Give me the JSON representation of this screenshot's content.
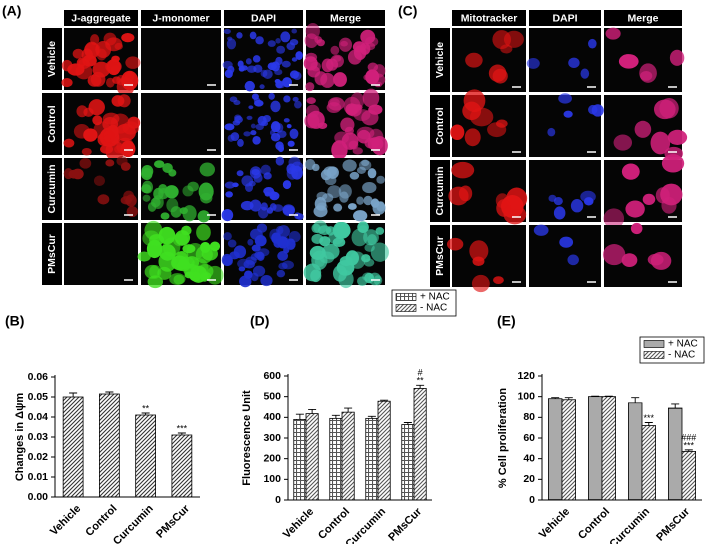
{
  "panels": {
    "A": {
      "label": "(A)",
      "columns": [
        "J-aggregate",
        "J-monomer",
        "DAPI",
        "Merge"
      ],
      "rows": [
        "Vehicle",
        "Control",
        "Curcumin",
        "PMsCur"
      ]
    },
    "C": {
      "label": "(C)",
      "columns": [
        "Mitotracker",
        "DAPI",
        "Merge"
      ],
      "rows": [
        "Vehicle",
        "Control",
        "Curcumin",
        "PMsCur"
      ]
    }
  },
  "chart_data": [
    {
      "type": "bar",
      "panel_label": "(B)",
      "ylabel": "Changes in Δψm",
      "categories": [
        "Vehicle",
        "Control",
        "Curcumin",
        "PMsCur"
      ],
      "values": [
        0.05,
        0.0515,
        0.041,
        0.031
      ],
      "errors": [
        0.002,
        0.001,
        0.001,
        0.001
      ],
      "annotations": [
        [],
        [],
        [
          "**"
        ],
        [
          "***"
        ]
      ],
      "color": "#333333",
      "hatch": "diagonal",
      "ylim": [
        0,
        0.06
      ],
      "yticks": [
        {
          "value": 0,
          "label": "0.00"
        },
        {
          "value": 0.01,
          "label": "0.01"
        },
        {
          "value": 0.02,
          "label": "0.02"
        },
        {
          "value": 0.03,
          "label": "0.03"
        },
        {
          "value": 0.04,
          "label": "0.04"
        },
        {
          "value": 0.05,
          "label": "0.05"
        },
        {
          "value": 0.06,
          "label": "0.06"
        }
      ]
    },
    {
      "type": "bar",
      "panel_label": "(D)",
      "ylabel": "Fluorescence Unit",
      "legend": "upper right",
      "categories": [
        "Vehicle",
        "Control",
        "Curcumin",
        "PMsCur"
      ],
      "series": [
        {
          "name": "+ NAC",
          "color": "#555555",
          "hatch": "grid",
          "values": [
            390,
            395,
            395,
            365
          ],
          "errors": [
            25,
            15,
            10,
            10
          ],
          "annotations": [
            [],
            [],
            [],
            []
          ]
        },
        {
          "name": "- NAC",
          "color": "#555555",
          "hatch": "diagonal",
          "values": [
            418,
            425,
            478,
            540
          ],
          "errors": [
            20,
            20,
            5,
            15
          ],
          "annotations": [
            [],
            [],
            [],
            [
              "#",
              "**"
            ]
          ]
        }
      ],
      "ylim": [
        0,
        600
      ],
      "yticks": [
        0,
        100,
        200,
        300,
        400,
        500,
        600
      ]
    },
    {
      "type": "bar",
      "panel_label": "(E)",
      "ylabel": "% Cell proliferation",
      "legend": "upper right",
      "categories": [
        "Vehicle",
        "Control",
        "Curcumin",
        "PMsCur"
      ],
      "series": [
        {
          "name": "+ NAC",
          "color": "#555555",
          "hatch": "horizontal",
          "values": [
            98,
            100,
            94,
            89
          ],
          "errors": [
            1,
            0.5,
            5,
            4
          ],
          "annotations": [
            [],
            [],
            [],
            []
          ]
        },
        {
          "name": "- NAC",
          "color": "#555555",
          "hatch": "diagonal",
          "values": [
            97,
            100,
            72,
            47
          ],
          "errors": [
            2,
            0.5,
            3,
            1.5
          ],
          "annotations": [
            [],
            [],
            [
              "***"
            ],
            [
              "###",
              "***"
            ]
          ]
        }
      ],
      "ylim": [
        0,
        120
      ],
      "yticks": [
        0,
        20,
        40,
        60,
        80,
        100,
        120
      ]
    }
  ]
}
